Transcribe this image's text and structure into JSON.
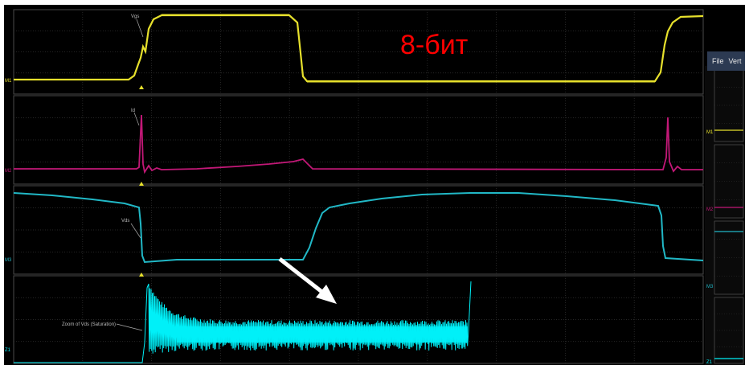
{
  "overlay_title": "8-бит",
  "menu": {
    "file": "File",
    "vert": "Vert"
  },
  "traces": [
    {
      "id": "trace-1",
      "label": "M1",
      "callout": "Vgs",
      "color": "#e6e02c"
    },
    {
      "id": "trace-2",
      "label": "M2",
      "callout": "Id",
      "color": "#c21877"
    },
    {
      "id": "trace-3",
      "label": "M3",
      "callout": "Vds",
      "color": "#21b8c6"
    },
    {
      "id": "trace-4",
      "label": "Z1",
      "callout": "Zoom of Vds (Saturation)",
      "color": "#00f0f8"
    }
  ],
  "side_panel_labels": [
    "M1",
    "M2",
    "M3",
    "Z1"
  ],
  "colors": {
    "screen_bg": "#000000",
    "grid": "#3a3a3a",
    "overlay_text": "#ff0000",
    "arrow": "#ffffff",
    "menubar_bg": "#2c3a52"
  }
}
